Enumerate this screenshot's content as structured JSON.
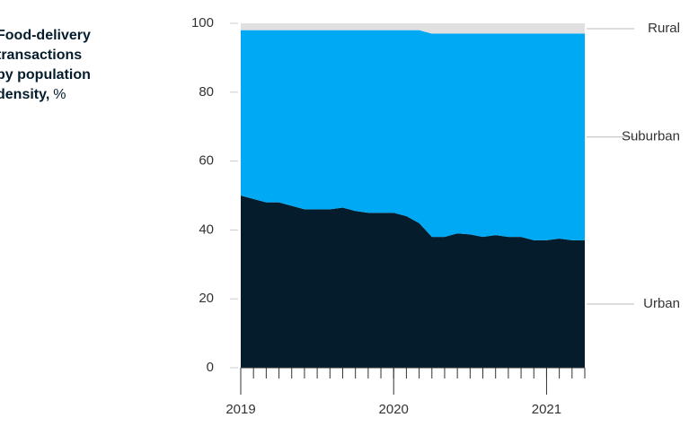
{
  "chart_data": {
    "type": "stacked_area",
    "title": "Food-delivery transactions by population density,",
    "unit": "%",
    "x": [
      0,
      1,
      2,
      3,
      4,
      5,
      6,
      7,
      8,
      9,
      10,
      11,
      12,
      13,
      14,
      15,
      16,
      17,
      18,
      19,
      20,
      21,
      22,
      23,
      24,
      25,
      26,
      27
    ],
    "xlim": [
      0,
      27
    ],
    "xticks": [
      {
        "value": 0,
        "label": "2019"
      },
      {
        "value": 12,
        "label": "2020"
      },
      {
        "value": 24,
        "label": "2021"
      }
    ],
    "ylim": [
      0,
      100
    ],
    "yticks": [
      0,
      20,
      40,
      60,
      80,
      100
    ],
    "grid": false,
    "series": [
      {
        "name": "Urban",
        "color": "#051c2c",
        "values": [
          50,
          49,
          48,
          48,
          47,
          46,
          46,
          46,
          46.5,
          45.5,
          45,
          45,
          45,
          44,
          42,
          38,
          38,
          39,
          38.7,
          38,
          38.5,
          38,
          38,
          37,
          37,
          37.5,
          37,
          37
        ]
      },
      {
        "name": "Suburban",
        "color": "#00a9f4",
        "values": [
          48,
          49,
          50,
          50,
          51,
          52,
          52,
          52,
          51.5,
          52.5,
          53,
          53,
          53,
          54,
          56,
          59,
          59,
          58,
          58.3,
          59,
          58.5,
          59,
          59,
          60,
          60,
          59.5,
          60,
          60
        ]
      },
      {
        "name": "Rural",
        "color": "#e0e0e0",
        "values": [
          2,
          2,
          2,
          2,
          2,
          2,
          2,
          2,
          2,
          2,
          2,
          2,
          2,
          2,
          2,
          3,
          3,
          3,
          3,
          3,
          3,
          3,
          3,
          3,
          3,
          3,
          3,
          3
        ]
      }
    ]
  }
}
